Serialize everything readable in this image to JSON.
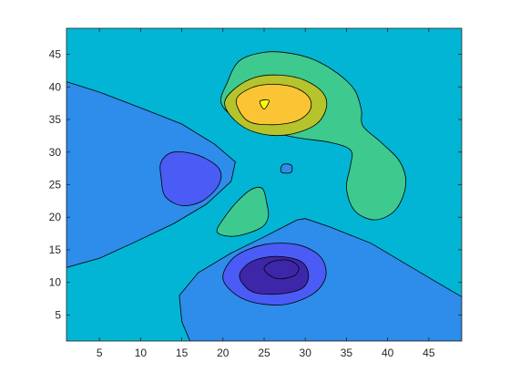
{
  "chart_data": {
    "type": "contourf",
    "title": "",
    "xlabel": "",
    "ylabel": "",
    "xlim": [
      1,
      49
    ],
    "ylim": [
      1,
      49
    ],
    "x_ticks": [
      5,
      10,
      15,
      20,
      25,
      30,
      35,
      40,
      45
    ],
    "y_ticks": [
      5,
      10,
      15,
      20,
      25,
      30,
      35,
      40,
      45
    ],
    "grid": false,
    "legend": "none",
    "colormap": "parula",
    "level_colors": {
      "-3": "#3e26a8",
      "-2": "#4a5cf5",
      "-1": "#2e8cea",
      "0": "#03b5d4",
      "1": "#3ec98f",
      "2": "#b5c42c",
      "3": "#fbc434",
      "4": "#f9fb0e"
    },
    "background_level": 0,
    "regions": [
      {
        "name": "left-basin",
        "level": -1,
        "points": [
          [
            1,
            40.8
          ],
          [
            5,
            39.2
          ],
          [
            10,
            36.8
          ],
          [
            15,
            34.3
          ],
          [
            19,
            31.2
          ],
          [
            21.5,
            28.5
          ],
          [
            21,
            25.5
          ],
          [
            18,
            22
          ],
          [
            14,
            19
          ],
          [
            9,
            16
          ],
          [
            5,
            13.7
          ],
          [
            1,
            12.3
          ]
        ]
      },
      {
        "name": "left-core",
        "level": -2,
        "points": [
          [
            12.5,
            26
          ],
          [
            12.5,
            28.5
          ],
          [
            14,
            30
          ],
          [
            17,
            29.5
          ],
          [
            19.5,
            27.5
          ],
          [
            19.5,
            25
          ],
          [
            17.5,
            22.5
          ],
          [
            15,
            21.8
          ],
          [
            13,
            23.2
          ]
        ]
      },
      {
        "name": "bottom-basin",
        "level": -1,
        "points": [
          [
            16,
            1
          ],
          [
            15,
            4
          ],
          [
            14.7,
            8
          ],
          [
            17,
            11.5
          ],
          [
            21,
            14.5
          ],
          [
            25,
            17
          ],
          [
            29,
            19.6
          ],
          [
            30,
            19.8
          ],
          [
            33,
            18.5
          ],
          [
            38,
            16
          ],
          [
            42,
            13
          ],
          [
            46,
            10
          ],
          [
            49,
            7.8
          ],
          [
            49,
            1
          ]
        ]
      },
      {
        "name": "bottom-ring-2",
        "level": -2,
        "points": [
          [
            20,
            11
          ],
          [
            21.5,
            14
          ],
          [
            25,
            15.8
          ],
          [
            29,
            15.8
          ],
          [
            31.8,
            14
          ],
          [
            32.5,
            11
          ],
          [
            31,
            8.3
          ],
          [
            27.5,
            6.6
          ],
          [
            23.5,
            7
          ],
          [
            21,
            8.7
          ]
        ]
      },
      {
        "name": "bottom-core",
        "level": -3,
        "points": [
          [
            22,
            11
          ],
          [
            23.5,
            13.2
          ],
          [
            26.5,
            14
          ],
          [
            29.5,
            13.2
          ],
          [
            30.4,
            11
          ],
          [
            29.5,
            9
          ],
          [
            26.5,
            8.2
          ],
          [
            23.5,
            8.6
          ]
        ]
      },
      {
        "name": "bottom-min",
        "level": -4,
        "points": [
          [
            25,
            12
          ],
          [
            26,
            13.2
          ],
          [
            28,
            13.4
          ],
          [
            29.2,
            12.3
          ],
          [
            28.6,
            11
          ],
          [
            26.5,
            10.6
          ]
        ]
      },
      {
        "name": "top-hill",
        "level": 1,
        "points": [
          [
            22,
            44
          ],
          [
            25,
            45.3
          ],
          [
            28,
            45.2
          ],
          [
            31,
            44.2
          ],
          [
            34,
            42
          ],
          [
            36,
            39.5
          ],
          [
            36.8,
            36.5
          ],
          [
            37,
            34
          ],
          [
            39.2,
            31.5
          ],
          [
            41.5,
            28.5
          ],
          [
            42.2,
            25
          ],
          [
            41,
            21.2
          ],
          [
            38.5,
            19.6
          ],
          [
            36,
            21
          ],
          [
            35,
            24.5
          ],
          [
            35.5,
            28
          ],
          [
            35.5,
            30.3
          ],
          [
            33,
            31.5
          ],
          [
            29,
            32.2
          ],
          [
            25,
            33.4
          ],
          [
            22,
            34.8
          ],
          [
            19.8,
            37.5
          ],
          [
            20.5,
            40.6
          ]
        ]
      },
      {
        "name": "top-ring-2",
        "level": 2,
        "points": [
          [
            20.2,
            37.5
          ],
          [
            21.5,
            39.8
          ],
          [
            24,
            41.5
          ],
          [
            27,
            41.8
          ],
          [
            30,
            41
          ],
          [
            32.2,
            39
          ],
          [
            32.5,
            36.5
          ],
          [
            31,
            34
          ],
          [
            27.5,
            32.6
          ],
          [
            24,
            33
          ],
          [
            21.5,
            34.8
          ]
        ]
      },
      {
        "name": "top-core",
        "level": 3,
        "points": [
          [
            21.6,
            37.8
          ],
          [
            23,
            39.6
          ],
          [
            25.5,
            40.4
          ],
          [
            28.5,
            40
          ],
          [
            30.4,
            38.5
          ],
          [
            30.6,
            36.5
          ],
          [
            29,
            34.8
          ],
          [
            26,
            34.2
          ],
          [
            23,
            34.8
          ]
        ]
      },
      {
        "name": "top-peak",
        "level": 4,
        "points": [
          [
            24.5,
            37.8
          ],
          [
            25.6,
            37.9
          ],
          [
            25,
            36.6
          ]
        ]
      },
      {
        "name": "middle-hill",
        "level": 1,
        "points": [
          [
            19.3,
            17.7
          ],
          [
            20.2,
            20
          ],
          [
            21.8,
            22.5
          ],
          [
            23.5,
            24.3
          ],
          [
            24.8,
            24.4
          ],
          [
            25.3,
            22.3
          ],
          [
            25.5,
            20
          ],
          [
            24.5,
            18.3
          ],
          [
            21.5,
            17.1
          ]
        ]
      },
      {
        "name": "center-dimple",
        "level": -1,
        "points": [
          [
            27,
            27.2
          ],
          [
            27.3,
            28.1
          ],
          [
            28.3,
            28
          ],
          [
            28.3,
            26.9
          ],
          [
            27.3,
            26.8
          ]
        ]
      }
    ]
  }
}
